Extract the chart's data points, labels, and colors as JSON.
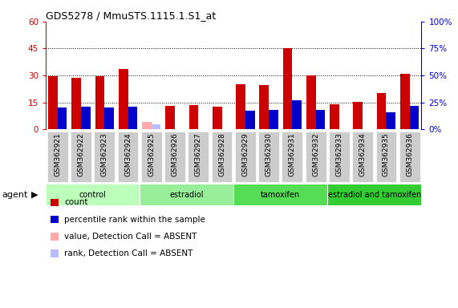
{
  "title": "GDS5278 / MmuSTS.1115.1.S1_at",
  "samples": [
    "GSM362921",
    "GSM362922",
    "GSM362923",
    "GSM362924",
    "GSM362925",
    "GSM362926",
    "GSM362927",
    "GSM362928",
    "GSM362929",
    "GSM362930",
    "GSM362931",
    "GSM362932",
    "GSM362933",
    "GSM362934",
    "GSM362935",
    "GSM362936"
  ],
  "count_values": [
    29.5,
    28.5,
    29.5,
    33.5,
    0,
    13,
    13.5,
    12.5,
    25,
    24.5,
    45,
    30,
    14,
    15.5,
    20,
    31
  ],
  "count_absent": [
    0,
    0,
    0,
    0,
    4,
    0,
    0,
    0,
    0,
    0,
    0,
    0,
    0,
    0,
    0,
    0
  ],
  "rank_values": [
    20,
    21,
    20,
    21,
    0,
    0,
    0,
    0,
    17,
    18,
    27,
    18,
    0,
    0,
    16,
    22
  ],
  "rank_absent": [
    0,
    0,
    0,
    0,
    5,
    0,
    0,
    0,
    0,
    0,
    0,
    0,
    0,
    0,
    0,
    0
  ],
  "groups": [
    {
      "label": "control",
      "start": 0,
      "end": 4,
      "color": "#bbffbb"
    },
    {
      "label": "estradiol",
      "start": 4,
      "end": 8,
      "color": "#99ee99"
    },
    {
      "label": "tamoxifen",
      "start": 8,
      "end": 12,
      "color": "#55dd55"
    },
    {
      "label": "estradiol and tamoxifen",
      "start": 12,
      "end": 16,
      "color": "#33cc33"
    }
  ],
  "ylim_left": [
    0,
    60
  ],
  "ylim_right": [
    0,
    100
  ],
  "yticks_left": [
    0,
    15,
    30,
    45,
    60
  ],
  "ytick_labels_left": [
    "0",
    "15",
    "30",
    "45",
    "60"
  ],
  "ytick_labels_right": [
    "0%",
    "25%",
    "50%",
    "75%",
    "100%"
  ],
  "count_color": "#cc0000",
  "rank_color": "#0000cc",
  "count_absent_color": "#ffaaaa",
  "rank_absent_color": "#bbbbff",
  "bg_xticklabel": "#cccccc",
  "legend_items": [
    {
      "label": "count",
      "color": "#cc0000"
    },
    {
      "label": "percentile rank within the sample",
      "color": "#0000cc"
    },
    {
      "label": "value, Detection Call = ABSENT",
      "color": "#ffaaaa"
    },
    {
      "label": "rank, Detection Call = ABSENT",
      "color": "#bbbbff"
    }
  ]
}
